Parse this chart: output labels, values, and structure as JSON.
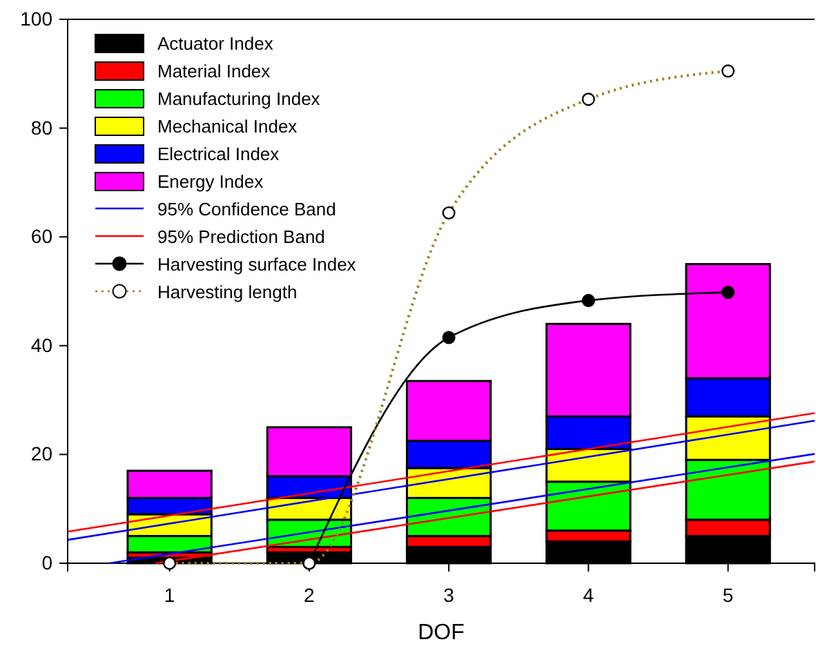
{
  "chart_data": {
    "type": "bar",
    "stacked": true,
    "xlabel": "DOF",
    "x": [
      1,
      2,
      3,
      4,
      5
    ],
    "xlim": [
      0.27,
      5.62
    ],
    "xticks": [
      1,
      2,
      3,
      4,
      5
    ],
    "ylim": [
      0,
      100
    ],
    "yticks": [
      0,
      20,
      40,
      60,
      80,
      100
    ],
    "grid": false,
    "legend": "top left",
    "series": [
      {
        "name": "Actuator Index",
        "color": "#000000",
        "values": [
          1,
          2,
          3,
          4,
          5
        ]
      },
      {
        "name": "Material Index",
        "color": "#ff0000",
        "values": [
          1,
          1,
          2,
          2,
          3
        ]
      },
      {
        "name": "Manufacturing Index",
        "color": "#00ff00",
        "values": [
          3,
          5,
          7,
          9,
          11
        ]
      },
      {
        "name": "Mechanical Index",
        "color": "#ffff00",
        "values": [
          4,
          4,
          5.5,
          6,
          8
        ]
      },
      {
        "name": "Electrical Index",
        "color": "#0000ff",
        "values": [
          3,
          4,
          5,
          6,
          7
        ]
      },
      {
        "name": "Energy Index",
        "color": "#ff00ff",
        "values": [
          5,
          9,
          11,
          17,
          21
        ]
      },
      {
        "name": "95% Confidence Band",
        "type": "line",
        "color": "#0000ff",
        "marker": "none",
        "x": [
          0.27,
          5.62
        ],
        "values": [
          4.3,
          26.2
        ]
      },
      {
        "type": "line",
        "color": "#0000ff",
        "marker": "none",
        "x": [
          0.57,
          5.62
        ],
        "values": [
          0,
          20.1
        ]
      },
      {
        "name": "95% Prediction Band",
        "type": "line",
        "color": "#ff0000",
        "marker": "none",
        "x": [
          0.27,
          5.62
        ],
        "values": [
          5.8,
          27.6
        ]
      },
      {
        "type": "line",
        "color": "#ff0000",
        "marker": "none",
        "x": [
          0.9,
          5.62
        ],
        "values": [
          0,
          18.7
        ]
      },
      {
        "name": "Harvesting surface Index",
        "type": "line",
        "color": "#000000",
        "marker": "circle",
        "line_style": "solid",
        "values": [
          null,
          0,
          41.5,
          48.3,
          49.8
        ]
      },
      {
        "name": "Harvesting length",
        "type": "line",
        "color": "#a08020",
        "marker": "circle",
        "line_style": "dotted",
        "values": [
          0,
          0,
          64.4,
          85.3,
          90.5
        ]
      }
    ]
  }
}
